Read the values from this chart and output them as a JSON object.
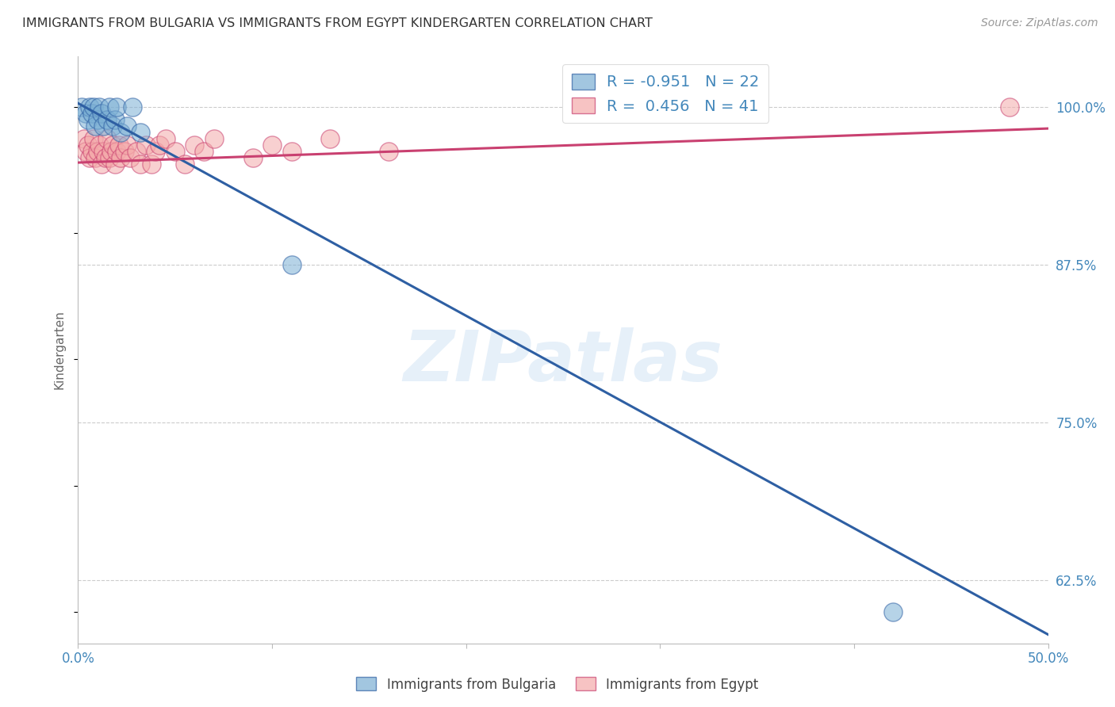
{
  "title": "IMMIGRANTS FROM BULGARIA VS IMMIGRANTS FROM EGYPT KINDERGARTEN CORRELATION CHART",
  "source": "Source: ZipAtlas.com",
  "ylabel": "Kindergarten",
  "yticks": [
    0.625,
    0.75,
    0.875,
    1.0
  ],
  "ytick_labels": [
    "62.5%",
    "75.0%",
    "87.5%",
    "100.0%"
  ],
  "xlim": [
    0.0,
    0.5
  ],
  "ylim": [
    0.575,
    1.04
  ],
  "watermark": "ZIPatlas",
  "legend_r_blue": "-0.951",
  "legend_n_blue": "22",
  "legend_r_pink": "0.456",
  "legend_n_pink": "41",
  "blue_color": "#7BAFD4",
  "pink_color": "#F4AAAA",
  "blue_line_color": "#2E5FA3",
  "pink_line_color": "#C94070",
  "grid_color": "#CCCCCC",
  "title_color": "#333333",
  "axis_label_color": "#4488BB",
  "blue_scatter_x": [
    0.002,
    0.004,
    0.005,
    0.006,
    0.007,
    0.008,
    0.009,
    0.01,
    0.011,
    0.012,
    0.013,
    0.015,
    0.016,
    0.018,
    0.019,
    0.02,
    0.022,
    0.025,
    0.028,
    0.032,
    0.11,
    0.42
  ],
  "blue_scatter_y": [
    1.0,
    0.995,
    0.99,
    1.0,
    0.995,
    1.0,
    0.985,
    0.99,
    1.0,
    0.995,
    0.985,
    0.99,
    1.0,
    0.985,
    0.99,
    1.0,
    0.98,
    0.985,
    1.0,
    0.98,
    0.875,
    0.6
  ],
  "pink_scatter_x": [
    0.003,
    0.004,
    0.005,
    0.006,
    0.007,
    0.008,
    0.009,
    0.01,
    0.011,
    0.012,
    0.013,
    0.014,
    0.015,
    0.016,
    0.017,
    0.018,
    0.019,
    0.02,
    0.021,
    0.022,
    0.024,
    0.025,
    0.027,
    0.03,
    0.032,
    0.035,
    0.038,
    0.04,
    0.042,
    0.045,
    0.05,
    0.055,
    0.06,
    0.065,
    0.07,
    0.09,
    0.1,
    0.11,
    0.13,
    0.16,
    0.48
  ],
  "pink_scatter_y": [
    0.975,
    0.965,
    0.97,
    0.96,
    0.965,
    0.975,
    0.96,
    0.965,
    0.97,
    0.955,
    0.965,
    0.96,
    0.975,
    0.96,
    0.965,
    0.97,
    0.955,
    0.965,
    0.97,
    0.96,
    0.965,
    0.97,
    0.96,
    0.965,
    0.955,
    0.97,
    0.955,
    0.965,
    0.97,
    0.975,
    0.965,
    0.955,
    0.97,
    0.965,
    0.975,
    0.96,
    0.97,
    0.965,
    0.975,
    0.965,
    1.0
  ],
  "blue_trendline_x": [
    0.0,
    0.5
  ],
  "blue_trendline_y": [
    1.003,
    0.582
  ],
  "pink_trendline_x": [
    0.0,
    0.5
  ],
  "pink_trendline_y": [
    0.956,
    0.983
  ]
}
